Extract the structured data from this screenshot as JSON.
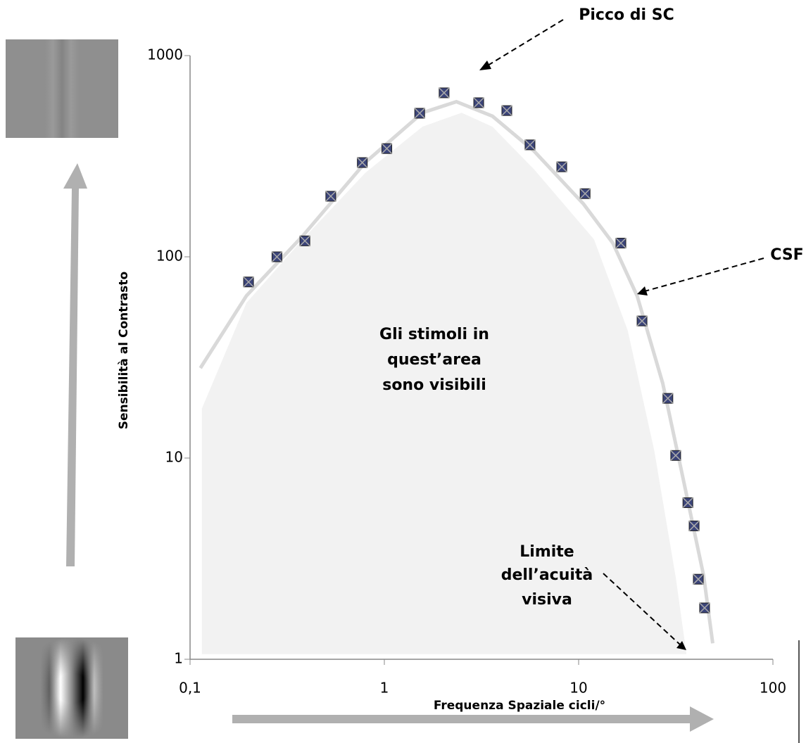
{
  "chart_data": {
    "type": "scatter",
    "x_label": "Frequenza Spaziale cicli/°",
    "y_label": "Sensibilità al Contrasto",
    "xscale": "log",
    "yscale": "log",
    "xlim": [
      0.1,
      100
    ],
    "ylim": [
      1,
      1000
    ],
    "xticks": [
      {
        "value": 0.1,
        "label": "0,1"
      },
      1,
      10,
      100
    ],
    "yticks": [
      1,
      10,
      100,
      1000
    ],
    "series": [
      {
        "color": "#3b4479",
        "x": [
          0.2,
          0.28,
          0.39,
          0.53,
          0.77,
          1.03,
          1.52,
          2.03,
          3.06,
          4.27,
          5.62,
          8.19,
          10.8,
          16.5,
          21.2,
          28.8,
          31.6,
          36.5,
          39.3,
          41.3,
          44.5
        ],
        "values": [
          75,
          100,
          120,
          200,
          294,
          345,
          517,
          653,
          583,
          533,
          360,
          280,
          206,
          117,
          48,
          19.8,
          10.3,
          6,
          4.6,
          2.5,
          1.8
        ]
      }
    ],
    "curve": {
      "color": "#d9d9d9",
      "x": [
        0.113,
        0.195,
        0.38,
        0.8,
        1.57,
        2.35,
        3.6,
        5.9,
        10.6,
        15,
        20,
        27.1,
        34.5,
        44,
        49
      ],
      "values": [
        28,
        64,
        127,
        295,
        520,
        590,
        500,
        335,
        183,
        117,
        64,
        23.5,
        7.9,
        2.6,
        1.2
      ]
    },
    "region": {
      "color": "#f2f2f2",
      "x": [
        0.115,
        0.115,
        0.195,
        0.38,
        0.8,
        1.57,
        2.5,
        3.6,
        5.9,
        12,
        17.9,
        24.5,
        31.6,
        35.9
      ],
      "values": [
        1.06,
        17.6,
        59,
        122,
        262,
        443,
        520,
        443,
        272,
        122,
        43,
        10.9,
        2.56,
        1.06
      ]
    },
    "annotations": [
      {
        "lines": [
          "Picco di SC"
        ]
      },
      {
        "lines": [
          "CSF"
        ]
      },
      {
        "lines": [
          "Gli stimoli in",
          "quest’area",
          "sono visibili"
        ]
      },
      {
        "lines": [
          "Limite",
          "dell’acuità",
          "visiva"
        ]
      }
    ]
  }
}
